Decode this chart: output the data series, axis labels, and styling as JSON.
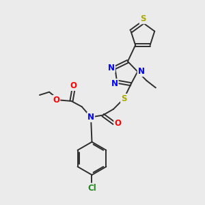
{
  "background_color": "#ebebeb",
  "bond_color": "#2d2d2d",
  "atom_colors": {
    "N": "#0000ff",
    "O": "#ff0000",
    "S": "#aaaa00",
    "Cl": "#228822",
    "C": "#2d2d2d"
  },
  "figsize": [
    3.0,
    3.0
  ],
  "dpi": 100
}
